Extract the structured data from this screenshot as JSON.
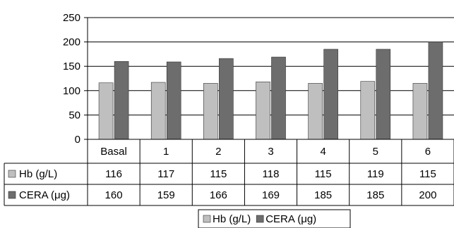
{
  "chart_data": {
    "type": "bar",
    "categories": [
      "Basal",
      "1",
      "2",
      "3",
      "4",
      "5",
      "6"
    ],
    "series": [
      {
        "name": "Hb (g/L)",
        "values": [
          116,
          117,
          115,
          118,
          115,
          119,
          115
        ],
        "color": "#bfbfbf"
      },
      {
        "name": "CERA (μg)",
        "values": [
          160,
          159,
          166,
          169,
          185,
          185,
          200
        ],
        "color": "#6d6d6d"
      }
    ],
    "ylim": [
      0,
      250
    ],
    "yticks": [
      0,
      50,
      100,
      150,
      200,
      250
    ],
    "grid": true,
    "legend": "bottom",
    "data_table": true
  }
}
